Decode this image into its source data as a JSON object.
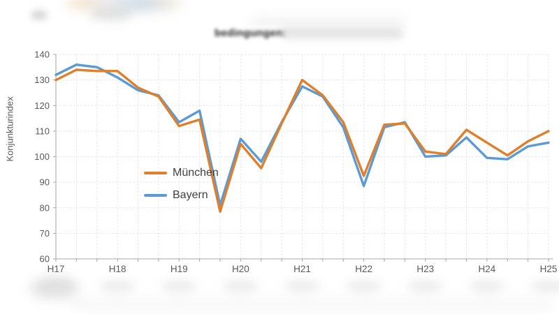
{
  "header": {
    "title_visible_fragment": "bedingungen:"
  },
  "y_axis_title": "Konjunkturindex",
  "chart_data": {
    "type": "line",
    "title": "bedingungen: (remainder of headline blurred)",
    "ylabel": "Konjunkturindex",
    "xlabel": "",
    "grid": true,
    "legend_position": "inside-left-middle",
    "ylim": [
      60,
      140
    ],
    "yticks": [
      60,
      70,
      80,
      90,
      100,
      110,
      120,
      130,
      140
    ],
    "x_labels": [
      "H17",
      "",
      "",
      "H18",
      "",
      "",
      "H19",
      "",
      "",
      "H20",
      "",
      "",
      "H21",
      "",
      "",
      "H22",
      "",
      "",
      "H23",
      "",
      "",
      "H24",
      "",
      "",
      "H25"
    ],
    "series": [
      {
        "name": "München",
        "color": "#E07F2B",
        "values": [
          130,
          134,
          133.5,
          133.5,
          127,
          123.5,
          112,
          114.5,
          78.5,
          105,
          95.5,
          113,
          130,
          124,
          113.5,
          92.5,
          112.5,
          113,
          102,
          101,
          110.5,
          105.5,
          100.5,
          106,
          110
        ]
      },
      {
        "name": "Bayern",
        "color": "#5B9BD5",
        "values": [
          132,
          136,
          135,
          131,
          126,
          124,
          113.5,
          118,
          81,
          107,
          98,
          113.5,
          127.5,
          123.5,
          111.5,
          88.5,
          111.5,
          113.5,
          100,
          100.5,
          107.5,
          99.5,
          99,
          104,
          105.5
        ]
      }
    ],
    "axis_color": "#a6a6a6",
    "gridline_color": "#e9e9e9",
    "tick_label_color": "#595959"
  }
}
